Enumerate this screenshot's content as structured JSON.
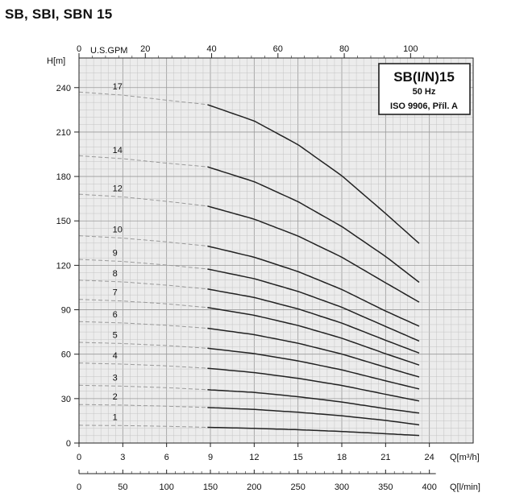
{
  "page_title": "SB, SBI, SBN 15",
  "chart_data": {
    "type": "line",
    "title": "SB(I/N)15",
    "subtitle": "50 Hz",
    "note": "ISO 9906, Příl. A",
    "y_label": "H[m]",
    "x_label": "Q[m³/h]",
    "x2_label": "Q[l/min]",
    "x3_label": "U.S.GPM",
    "ylim": [
      0,
      260
    ],
    "xlim": [
      0,
      27
    ],
    "y_ticks": [
      0,
      30,
      60,
      90,
      120,
      150,
      180,
      210,
      240
    ],
    "x_ticks": [
      0,
      3,
      6,
      9,
      12,
      15,
      18,
      21,
      24
    ],
    "lmin_ticks": [
      0,
      50,
      100,
      150,
      200,
      250,
      300,
      350,
      400
    ],
    "gpm_ticks": [
      0,
      20,
      40,
      60,
      80,
      100
    ],
    "grid": true,
    "operating_range": [
      8.8,
      23.5
    ],
    "series": [
      {
        "name": "1",
        "x": [
          0,
          3,
          6,
          8.8,
          12,
          15,
          18,
          21,
          23.5
        ],
        "y": [
          12,
          11.8,
          11.3,
          10.6,
          9.9,
          9,
          7.8,
          6.3,
          5
        ]
      },
      {
        "name": "2",
        "x": [
          0,
          3,
          6,
          8.8,
          12,
          15,
          18,
          21,
          23.5
        ],
        "y": [
          26,
          25.6,
          24.9,
          24,
          22.7,
          20.8,
          18.4,
          15.3,
          12
        ]
      },
      {
        "name": "3",
        "x": [
          0,
          3,
          6,
          8.8,
          12,
          15,
          18,
          21,
          23.5
        ],
        "y": [
          39,
          38.4,
          37.4,
          36,
          34.2,
          31.3,
          27.7,
          23.2,
          20
        ]
      },
      {
        "name": "4",
        "x": [
          0,
          3,
          6,
          8.8,
          12,
          15,
          18,
          21,
          23.5
        ],
        "y": [
          54,
          53.3,
          52.1,
          50.5,
          47.6,
          43.7,
          38.9,
          32.9,
          28
        ]
      },
      {
        "name": "5",
        "x": [
          0,
          3,
          6,
          8.8,
          12,
          15,
          18,
          21,
          23.5
        ],
        "y": [
          68,
          67.2,
          65.8,
          64,
          60.4,
          55.5,
          49.4,
          42,
          36
        ]
      },
      {
        "name": "6",
        "x": [
          0,
          3,
          6,
          8.8,
          12,
          15,
          18,
          21,
          23.5
        ],
        "y": [
          82,
          81.1,
          79.5,
          77.5,
          73.2,
          67.4,
          60.1,
          51.2,
          44
        ]
      },
      {
        "name": "7",
        "x": [
          0,
          3,
          6,
          8.8,
          12,
          15,
          18,
          21,
          23.5
        ],
        "y": [
          97,
          95.9,
          94,
          91.5,
          86.3,
          79.4,
          70.8,
          60.3,
          52
        ]
      },
      {
        "name": "8",
        "x": [
          0,
          3,
          6,
          8.8,
          12,
          15,
          18,
          21,
          23.5
        ],
        "y": [
          110,
          108.8,
          106.6,
          104,
          98.3,
          90.6,
          81,
          69.4,
          60
        ]
      },
      {
        "name": "9",
        "x": [
          0,
          3,
          6,
          8.8,
          12,
          15,
          18,
          21,
          23.5
        ],
        "y": [
          124,
          122.6,
          120.2,
          117.5,
          111,
          102.4,
          91.7,
          78.7,
          68
        ]
      },
      {
        "name": "10",
        "x": [
          0,
          3,
          6,
          8.8,
          12,
          15,
          18,
          21,
          23.5
        ],
        "y": [
          140,
          138.4,
          135.8,
          133,
          125.5,
          115.8,
          103.7,
          89.1,
          78
        ]
      },
      {
        "name": "12",
        "x": [
          0,
          3,
          6,
          8.8,
          12,
          15,
          18,
          21,
          23.5
        ],
        "y": [
          168,
          166.2,
          163.2,
          160,
          151.2,
          139.8,
          125.5,
          108.2,
          94
        ]
      },
      {
        "name": "14",
        "x": [
          0,
          3,
          6,
          8.8,
          12,
          15,
          18,
          21,
          23.5
        ],
        "y": [
          194,
          192,
          189,
          186.5,
          176.5,
          163,
          146.2,
          126,
          107
        ]
      },
      {
        "name": "17",
        "x": [
          0,
          3,
          6,
          8.8,
          12,
          15,
          18,
          21,
          23.5
        ],
        "y": [
          237,
          234.9,
          231.5,
          228.5,
          217.5,
          201.5,
          180.5,
          155,
          133
        ]
      }
    ]
  }
}
